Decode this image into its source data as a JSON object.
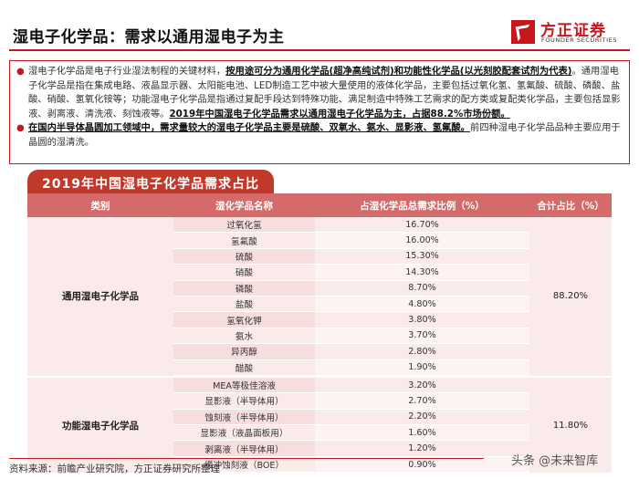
{
  "header": {
    "title": "湿电子化学品：需求以通用湿电子为主",
    "logo_name": "方正证券",
    "logo_en": "FOUNDER SECURITIES"
  },
  "bullets": [
    {
      "parts": [
        {
          "text": "湿电子化学品是电子行业湿法制程的关键材料，",
          "strong": false
        },
        {
          "text": "按用途可分为通用化学品(超净高纯试剂)和功能性化学品(以光刻胶配套试剂为代表)",
          "strong": true
        },
        {
          "text": "。通用湿电子化学品是指在集成电路、液晶显示器、太阳能电池、LED制造工艺中被大量使用的液体化学品，主要包括过氧化氢、氢氟酸、硫酸、磷酸、盐酸、硝酸、氢氧化铵等；功能湿电子化学品是指通过复配手段达到特殊功能、满足制造中特殊工艺需求的配方类或复配类化学品，主要包括显影液、剥离液、清洗液、刻蚀液等。",
          "strong": false
        },
        {
          "text": "2019年中国湿电子化学品需求以通用湿电子化学品为主，占据88.2%市场份额。",
          "strong": true
        }
      ]
    },
    {
      "parts": [
        {
          "text": "在国内半导体晶圆加工领域中，需求量较大的湿电子化学品主要是硫酸、双氧水、氨水、显影液、氢氟酸。",
          "strong": true
        },
        {
          "text": "前四种湿电子化学品品种主要应用于晶圆的湿清洗。",
          "strong": false
        }
      ]
    }
  ],
  "table": {
    "title": "2019年中国湿电子化学品需求占比",
    "headers": [
      "类别",
      "湿化学品名称",
      "占湿化学品总需求比例（%）",
      "合计占比（%）"
    ],
    "groups": [
      {
        "category": "通用湿电子化学品",
        "total": "88.20%",
        "rows": [
          [
            "过氧化氢",
            "16.70%"
          ],
          [
            "氢氟酸",
            "16.00%"
          ],
          [
            "硫酸",
            "15.30%"
          ],
          [
            "硝酸",
            "14.30%"
          ],
          [
            "磷酸",
            "8.70%"
          ],
          [
            "盐酸",
            "4.80%"
          ],
          [
            "氢氧化钾",
            "3.80%"
          ],
          [
            "氨水",
            "3.70%"
          ],
          [
            "异丙醇",
            "2.80%"
          ],
          [
            "醋酸",
            "1.90%"
          ]
        ]
      },
      {
        "category": "功能湿电子化学品",
        "total": "11.80%",
        "rows": [
          [
            "MEA等极佳溶液",
            "3.20%"
          ],
          [
            "显影液（半导体用）",
            "2.70%"
          ],
          [
            "蚀刻液（半导体用）",
            "2.20%"
          ],
          [
            "显影液（液晶面板用）",
            "1.60%"
          ],
          [
            "剥离液（半导体用）",
            "1.20%"
          ],
          [
            "缓冲蚀刻液（BOE）",
            "0.90%"
          ]
        ]
      }
    ]
  },
  "footer": {
    "source": "资料来源：前瞻产业研究院，方正证券研究所整理",
    "watermark": "头条 @未来智库"
  },
  "colors": {
    "brand_red": "#c8161d",
    "table_header": "#d46a6a",
    "row_light": "#fbeaea"
  }
}
